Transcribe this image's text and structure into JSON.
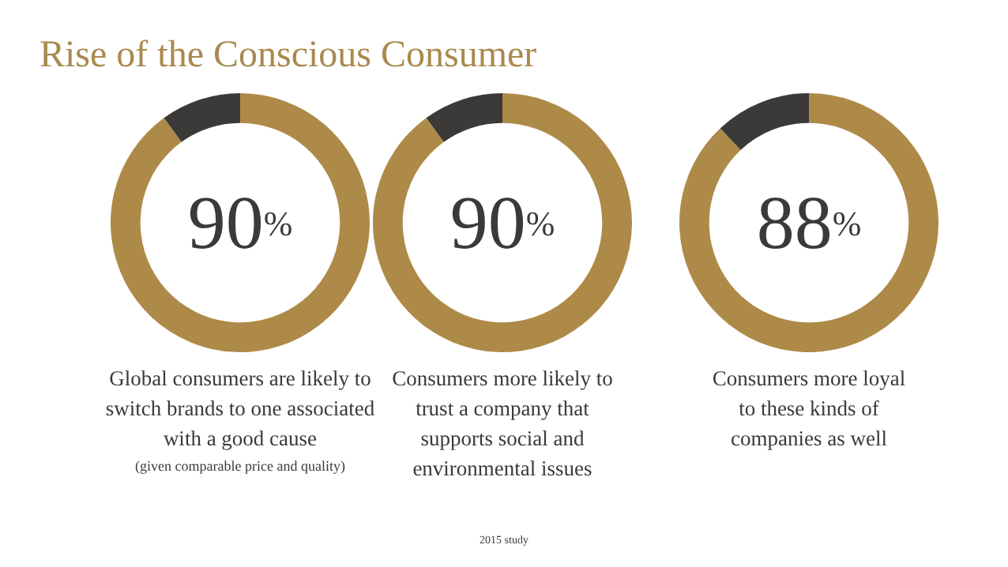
{
  "chart_data": [
    {
      "type": "donut",
      "title": "Rise of the Conscious Consumer",
      "categories": [
        null,
        null
      ],
      "values": [
        90,
        10
      ],
      "colors": [
        "#ae8a48",
        "#3b3a38"
      ],
      "value_labels": [
        "90$^{%}$",
        null
      ],
      "legend": false,
      "annotations": [
        "Global consumers are likely to switch brands to one associated with a good cause",
        "(given comparable price and quality)"
      ]
    },
    {
      "type": "donut",
      "categories": [
        null,
        null
      ],
      "values": [
        90,
        10
      ],
      "colors": [
        "#ae8a48",
        "#3b3a38"
      ],
      "value_labels": [
        "90$^{%}$",
        null
      ],
      "legend": false,
      "annotations": [
        "Consumers more likely to trust a company that supports social and environmental issues",
        "2015 study"
      ]
    },
    {
      "type": "donut",
      "categories": [
        null,
        null
      ],
      "values": [
        88,
        12
      ],
      "colors": [
        "#ae8a48",
        "#3b3a38"
      ],
      "value_labels": [
        "88$^{%}$",
        null
      ],
      "legend": false,
      "annotations": [
        "Consumers more loyal to these kinds of companies as well"
      ]
    }
  ]
}
